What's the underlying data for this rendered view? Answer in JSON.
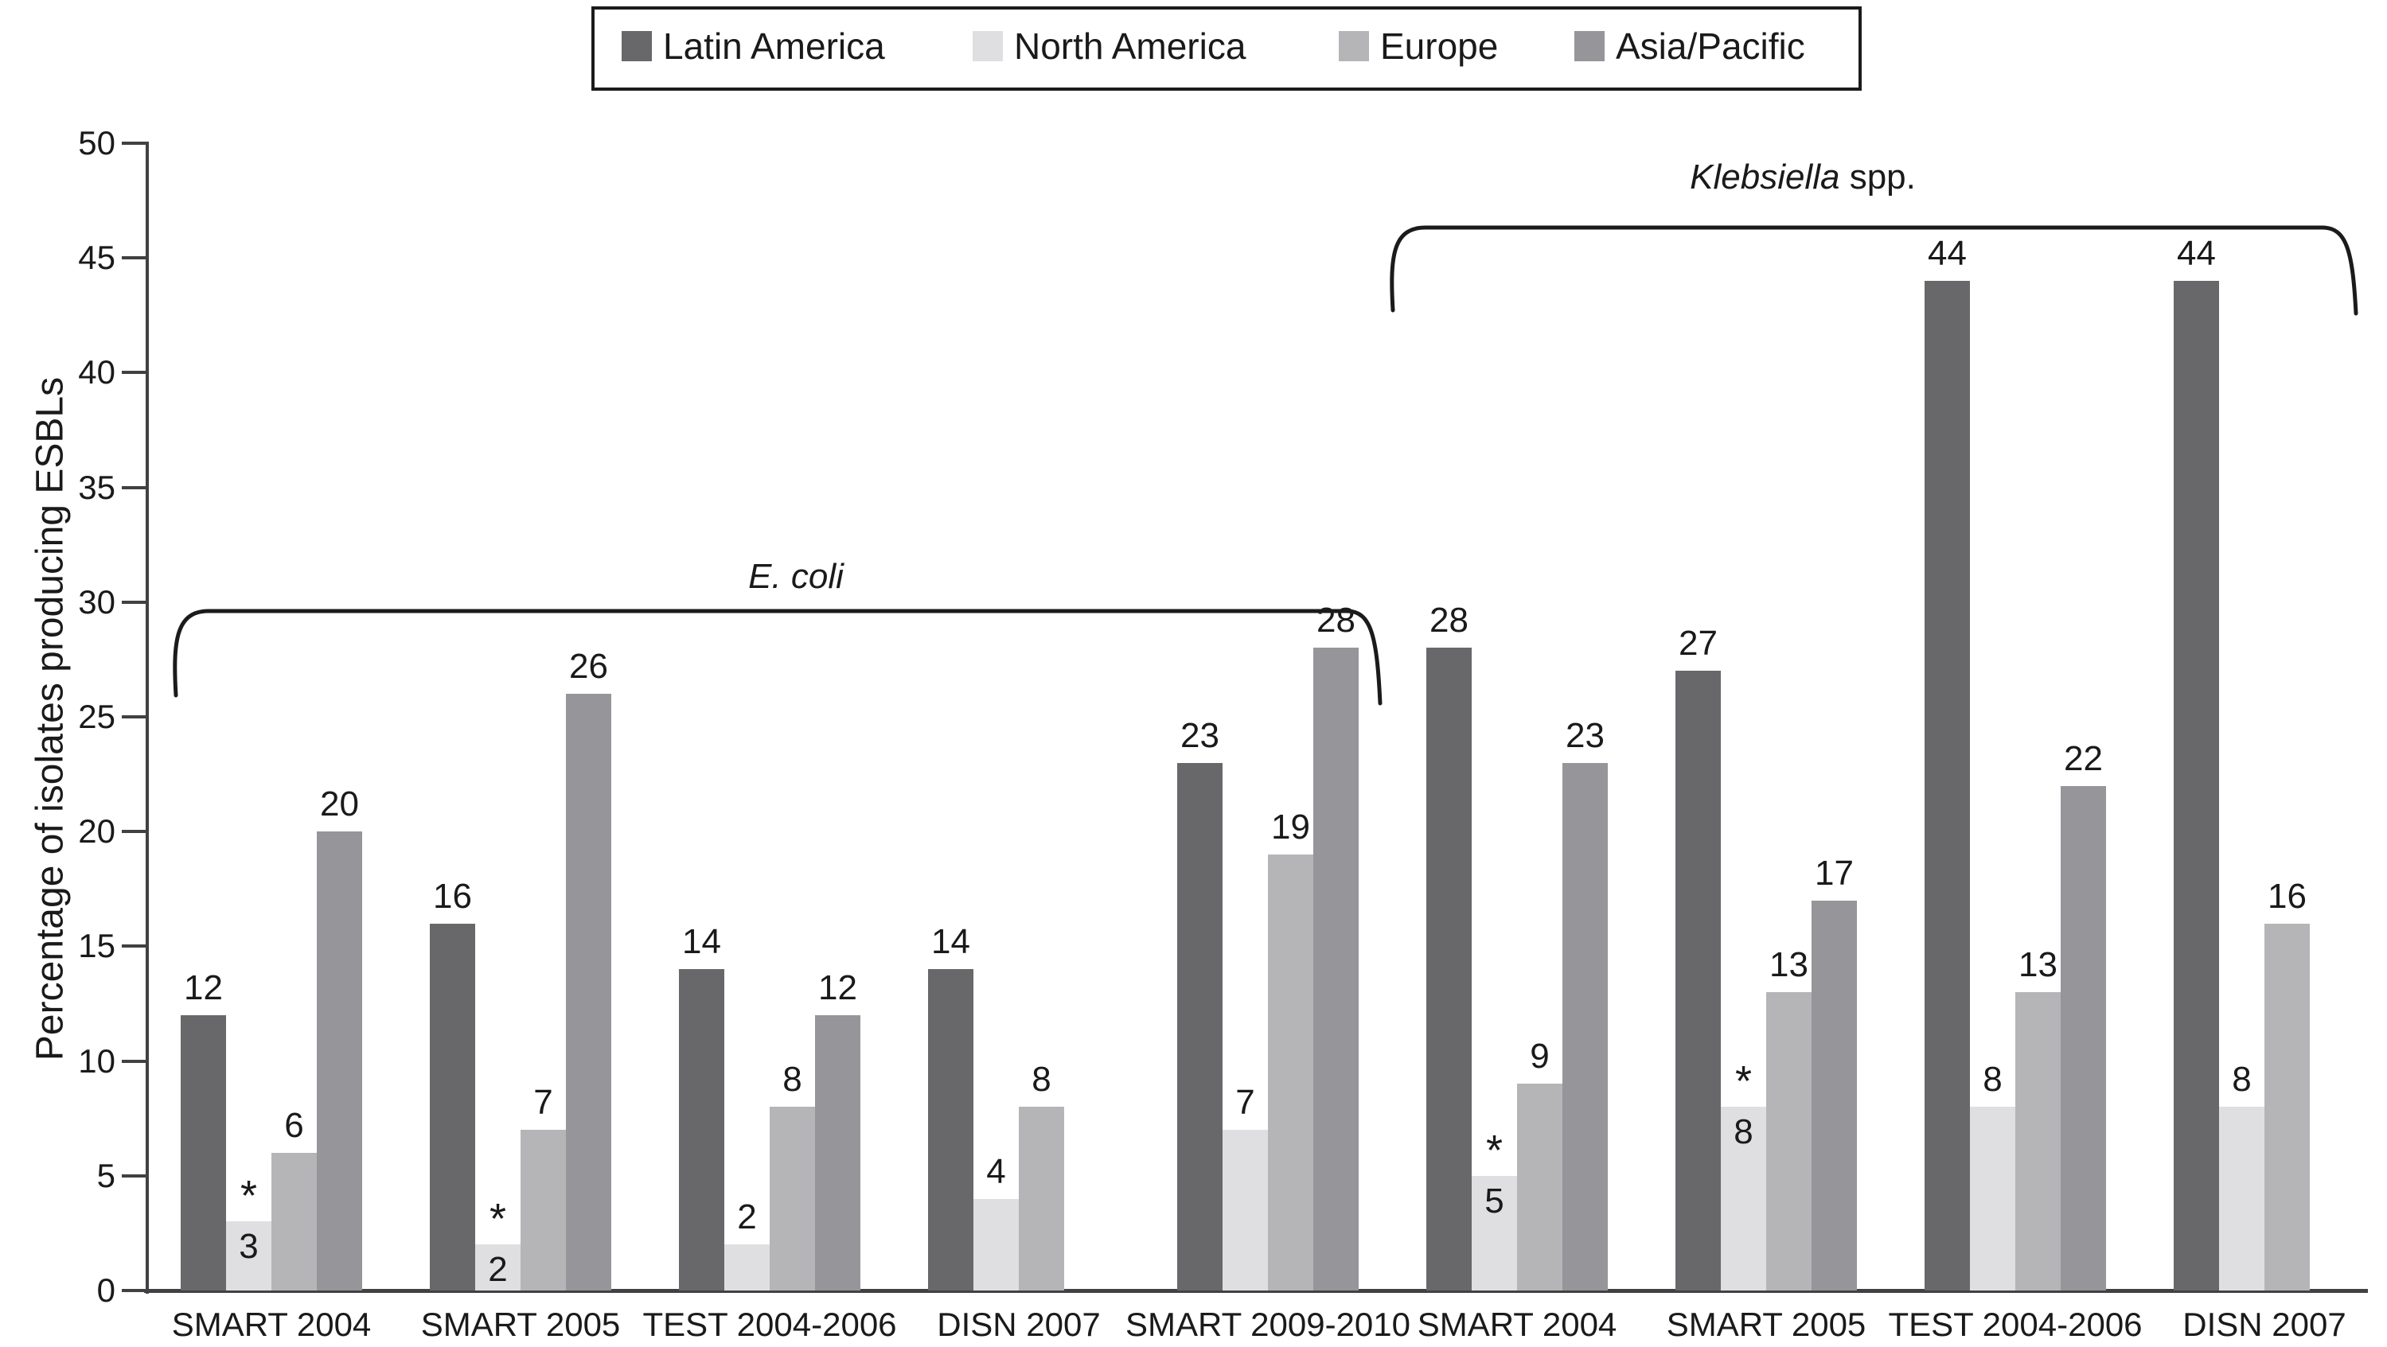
{
  "figure": {
    "y_axis_title": "Percentage of isolates producing ESBLs"
  },
  "chart_data": {
    "type": "bar",
    "title": "",
    "xlabel": "",
    "ylabel": "Percentage of isolates producing ESBLs",
    "ylim": [
      0,
      50
    ],
    "ytick_interval": 5,
    "yticks": [
      0,
      5,
      10,
      15,
      20,
      25,
      30,
      35,
      40,
      45,
      50
    ],
    "grid": "off",
    "legend_position": "top",
    "series": [
      {
        "name": "Latin America",
        "color": "#68686b"
      },
      {
        "name": "North America",
        "color": "#dfdfe1"
      },
      {
        "name": "Europe",
        "color": "#b5b5b8"
      },
      {
        "name": "Asia/Pacific",
        "color": "#95959a"
      }
    ],
    "sections": [
      {
        "label_italic": "E. coli",
        "label_suffix": "",
        "group_indexes": [
          0,
          1,
          2,
          3,
          4
        ]
      },
      {
        "label_italic": "Klebsiella",
        "label_suffix": " spp.",
        "group_indexes": [
          5,
          6,
          7,
          8
        ]
      }
    ],
    "star_note": "* shown above starred bars; starred bar values printed inside bar",
    "groups": [
      {
        "label": "SMART 2004",
        "section": "E. coli",
        "bars": [
          {
            "series": "Latin America",
            "value": 12
          },
          {
            "series": "North America",
            "value": 3,
            "star": true
          },
          {
            "series": "Europe",
            "value": 6
          },
          {
            "series": "Asia/Pacific",
            "value": 20
          }
        ]
      },
      {
        "label": "SMART 2005",
        "section": "E. coli",
        "bars": [
          {
            "series": "Latin America",
            "value": 16
          },
          {
            "series": "North America",
            "value": 2,
            "star": true
          },
          {
            "series": "Europe",
            "value": 7
          },
          {
            "series": "Asia/Pacific",
            "value": 26
          }
        ]
      },
      {
        "label": "TEST 2004-2006",
        "section": "E. coli",
        "bars": [
          {
            "series": "Latin America",
            "value": 14
          },
          {
            "series": "North America",
            "value": 2
          },
          {
            "series": "Europe",
            "value": 8
          },
          {
            "series": "Asia/Pacific",
            "value": 12
          }
        ]
      },
      {
        "label": "DISN 2007",
        "section": "E. coli",
        "bars": [
          {
            "series": "Latin America",
            "value": 14
          },
          {
            "series": "North America",
            "value": 4
          },
          {
            "series": "Europe",
            "value": 8
          }
        ]
      },
      {
        "label": "SMART 2009-2010",
        "section": "E. coli",
        "bars": [
          {
            "series": "Latin America",
            "value": 23
          },
          {
            "series": "North America",
            "value": 7
          },
          {
            "series": "Europe",
            "value": 19
          },
          {
            "series": "Asia/Pacific",
            "value": 28
          }
        ]
      },
      {
        "label": "SMART 2004",
        "section": "Klebsiella spp.",
        "bars": [
          {
            "series": "Latin America",
            "value": 28
          },
          {
            "series": "North America",
            "value": 5,
            "star": true
          },
          {
            "series": "Europe",
            "value": 9
          },
          {
            "series": "Asia/Pacific",
            "value": 23
          }
        ]
      },
      {
        "label": "SMART 2005",
        "section": "Klebsiella spp.",
        "bars": [
          {
            "series": "Latin America",
            "value": 27
          },
          {
            "series": "North America",
            "value": 8,
            "star": true
          },
          {
            "series": "Europe",
            "value": 13
          },
          {
            "series": "Asia/Pacific",
            "value": 17
          }
        ]
      },
      {
        "label": "TEST 2004-2006",
        "section": "Klebsiella spp.",
        "bars": [
          {
            "series": "Latin America",
            "value": 44
          },
          {
            "series": "North America",
            "value": 8
          },
          {
            "series": "Europe",
            "value": 13
          },
          {
            "series": "Asia/Pacific",
            "value": 22
          }
        ]
      },
      {
        "label": "DISN 2007",
        "section": "Klebsiella spp.",
        "bars": [
          {
            "series": "Latin America",
            "value": 44
          },
          {
            "series": "North America",
            "value": 8
          },
          {
            "series": "Europe",
            "value": 16
          }
        ]
      }
    ]
  }
}
